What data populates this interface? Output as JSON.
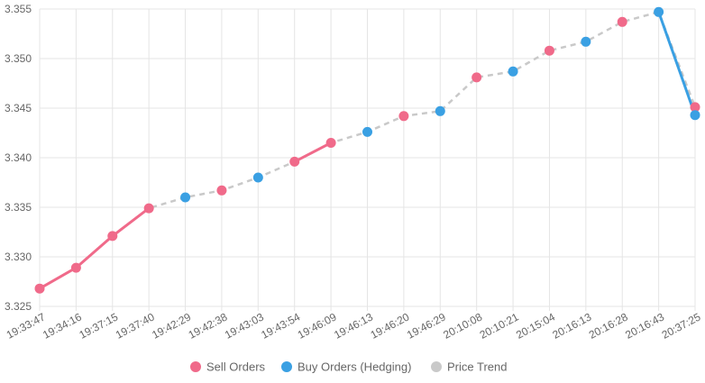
{
  "chart_data": {
    "type": "line",
    "categories": [
      "19:33:47",
      "19:34:16",
      "19:37:15",
      "19:37:40",
      "19:42:29",
      "19:42:38",
      "19:43:03",
      "19:43:54",
      "19:46:09",
      "19:46:13",
      "19:46:20",
      "19:46:29",
      "20:10:08",
      "20:10:21",
      "20:15:04",
      "20:16:13",
      "20:16:28",
      "20:16:43",
      "20:37:25"
    ],
    "ylim": [
      3.325,
      3.355
    ],
    "yticks": [
      "3.325",
      "3.330",
      "3.335",
      "3.340",
      "3.345",
      "3.350",
      "3.355"
    ],
    "grid": true,
    "legend_position": "bottom",
    "series": [
      {
        "name": "Sell Orders",
        "color": "#f06a8a",
        "values": [
          3.3268,
          3.3289,
          3.3321,
          3.3349,
          null,
          3.3367,
          null,
          3.3396,
          3.3415,
          null,
          3.3442,
          null,
          3.3481,
          null,
          3.3508,
          null,
          3.3537,
          null,
          3.3451
        ]
      },
      {
        "name": "Buy Orders (Hedging)",
        "color": "#3aa0e3",
        "values": [
          null,
          null,
          null,
          null,
          3.336,
          null,
          3.338,
          null,
          null,
          3.3426,
          null,
          3.3447,
          null,
          3.3487,
          null,
          3.3517,
          null,
          3.3547,
          3.3443
        ]
      },
      {
        "name": "Price Trend",
        "color": "#c9c9c9",
        "values": [
          3.3268,
          3.3289,
          3.3321,
          3.3349,
          3.336,
          3.3367,
          3.338,
          3.3396,
          3.3415,
          3.3426,
          3.3442,
          3.3447,
          3.3481,
          3.3487,
          3.3508,
          3.3517,
          3.3537,
          3.3547,
          3.3451
        ]
      }
    ]
  }
}
